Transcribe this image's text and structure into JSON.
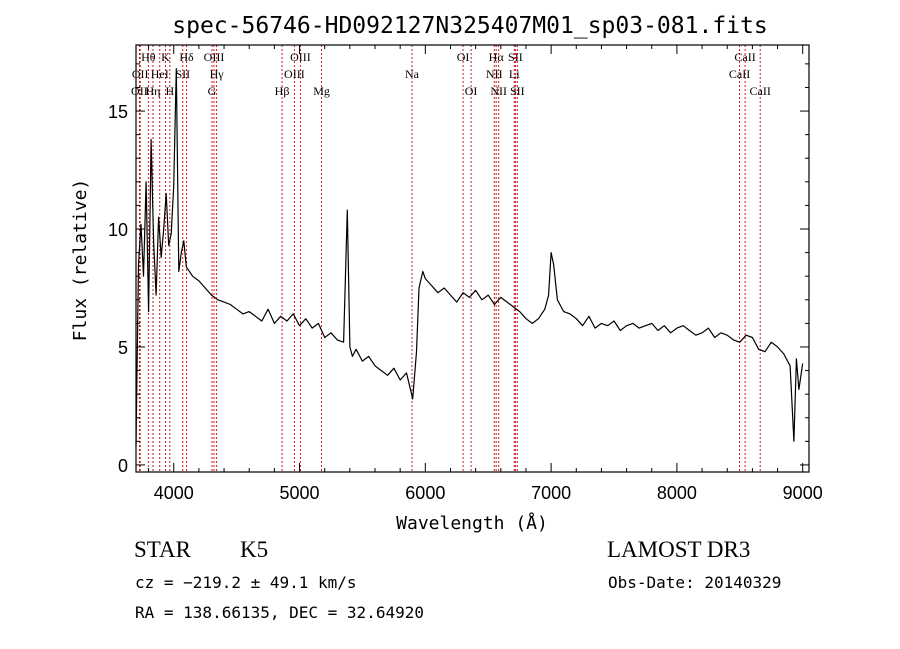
{
  "chart_data": {
    "type": "line",
    "title": "spec-56746-HD092127N325407M01_sp03-081.fits",
    "xlabel": "Wavelength (Å)",
    "ylabel": "Flux (relative)",
    "xlim": [
      3700,
      9050
    ],
    "ylim": [
      -0.3,
      17.8
    ],
    "x_ticks": [
      4000,
      5000,
      6000,
      7000,
      8000,
      9000
    ],
    "y_ticks": [
      0,
      5,
      10,
      15
    ],
    "grid": false,
    "line_color": "#000000",
    "marker_color": "#cc0000",
    "series": [
      {
        "x": [
          3700,
          3720,
          3740,
          3760,
          3780,
          3800,
          3820,
          3840,
          3860,
          3880,
          3900,
          3920,
          3940,
          3960,
          3980,
          4000,
          4020,
          4040,
          4060,
          4080,
          4100,
          4150,
          4200,
          4250,
          4300,
          4350,
          4400,
          4450,
          4500,
          4550,
          4600,
          4650,
          4700,
          4750,
          4800,
          4850,
          4900,
          4950,
          5000,
          5050,
          5100,
          5150,
          5200,
          5250,
          5300,
          5350,
          5380,
          5400,
          5420,
          5450,
          5500,
          5550,
          5600,
          5650,
          5700,
          5750,
          5800,
          5850,
          5900,
          5930,
          5950,
          5980,
          6000,
          6050,
          6100,
          6150,
          6200,
          6250,
          6300,
          6350,
          6400,
          6450,
          6500,
          6550,
          6600,
          6650,
          6700,
          6750,
          6800,
          6850,
          6900,
          6950,
          6980,
          7000,
          7020,
          7050,
          7100,
          7150,
          7200,
          7250,
          7300,
          7350,
          7400,
          7450,
          7500,
          7550,
          7600,
          7650,
          7700,
          7750,
          7800,
          7850,
          7900,
          7950,
          8000,
          8050,
          8100,
          8150,
          8200,
          8250,
          8300,
          8350,
          8400,
          8450,
          8500,
          8550,
          8600,
          8650,
          8700,
          8750,
          8800,
          8850,
          8900,
          8930,
          8950,
          8970,
          9000
        ],
        "y": [
          0.8,
          8.5,
          10.2,
          8.0,
          12.0,
          6.5,
          13.8,
          9.5,
          7.2,
          10.5,
          8.8,
          10.0,
          11.5,
          9.3,
          9.8,
          11.8,
          16.8,
          8.2,
          9.0,
          9.5,
          8.4,
          8.0,
          7.8,
          7.5,
          7.2,
          7.0,
          6.9,
          6.8,
          6.6,
          6.4,
          6.5,
          6.3,
          6.1,
          6.6,
          6.0,
          6.3,
          6.1,
          6.4,
          5.9,
          6.2,
          5.8,
          6.0,
          5.4,
          5.6,
          5.3,
          5.2,
          10.8,
          5.0,
          4.6,
          4.9,
          4.4,
          4.6,
          4.2,
          4.0,
          3.8,
          4.1,
          3.6,
          3.9,
          2.8,
          4.8,
          7.5,
          8.2,
          7.9,
          7.6,
          7.3,
          7.5,
          7.2,
          6.9,
          7.3,
          7.1,
          7.4,
          7.0,
          7.2,
          6.8,
          7.1,
          6.9,
          6.7,
          6.5,
          6.2,
          6.0,
          6.2,
          6.6,
          7.2,
          9.0,
          8.5,
          7.0,
          6.5,
          6.4,
          6.2,
          5.9,
          6.3,
          5.8,
          6.0,
          5.9,
          6.1,
          5.7,
          5.9,
          6.0,
          5.8,
          5.9,
          6.0,
          5.7,
          5.9,
          5.6,
          5.8,
          5.9,
          5.7,
          5.5,
          5.6,
          5.8,
          5.4,
          5.6,
          5.5,
          5.3,
          5.2,
          5.5,
          5.4,
          4.9,
          4.8,
          5.2,
          5.0,
          4.7,
          4.2,
          1.0,
          4.5,
          3.2,
          4.3
        ]
      }
    ],
    "spectral_lines": [
      {
        "label": "OII",
        "x": 3727,
        "row": 2
      },
      {
        "label": "OII",
        "x": 3733,
        "row": 1
      },
      {
        "label": "Hθ",
        "x": 3798,
        "row": 0
      },
      {
        "label": "Hη",
        "x": 3835,
        "row": 2
      },
      {
        "label": "HeI",
        "x": 3889,
        "row": 1
      },
      {
        "label": "K",
        "x": 3934,
        "row": 0
      },
      {
        "label": "H",
        "x": 3969,
        "row": 2
      },
      {
        "label": "SII",
        "x": 4072,
        "row": 1
      },
      {
        "label": "Hδ",
        "x": 4102,
        "row": 0
      },
      {
        "label": "G",
        "x": 4304,
        "row": 2
      },
      {
        "label": "OIII",
        "x": 4320,
        "row": 0
      },
      {
        "label": "Hγ",
        "x": 4341,
        "row": 1
      },
      {
        "label": "Hβ",
        "x": 4861,
        "row": 2
      },
      {
        "label": "OIII",
        "x": 4959,
        "row": 1
      },
      {
        "label": "OIII",
        "x": 5007,
        "row": 0
      },
      {
        "label": "Mg",
        "x": 5175,
        "row": 2
      },
      {
        "label": "Na",
        "x": 5894,
        "row": 1
      },
      {
        "label": "OI",
        "x": 6300,
        "row": 0
      },
      {
        "label": "OI",
        "x": 6364,
        "row": 2
      },
      {
        "label": "NII",
        "x": 6548,
        "row": 1
      },
      {
        "label": "Hα",
        "x": 6563,
        "row": 0
      },
      {
        "label": "NII",
        "x": 6583,
        "row": 2
      },
      {
        "label": "Li",
        "x": 6707,
        "row": 1
      },
      {
        "label": "SII",
        "x": 6716,
        "row": 0
      },
      {
        "label": "SII",
        "x": 6731,
        "row": 2
      },
      {
        "label": "CaII",
        "x": 8498,
        "row": 1
      },
      {
        "label": "CaII",
        "x": 8542,
        "row": 0
      },
      {
        "label": "CaII",
        "x": 8662,
        "row": 2
      }
    ]
  },
  "footer": {
    "class_label": "STAR",
    "subclass_label": "K5",
    "survey_label": "LAMOST DR3",
    "redshift_text": "cz = −219.2 ± 49.1 km/s",
    "obs_date_text": "Obs-Date: 20140329",
    "coords_text": "RA = 138.66135, DEC =  32.64920"
  }
}
